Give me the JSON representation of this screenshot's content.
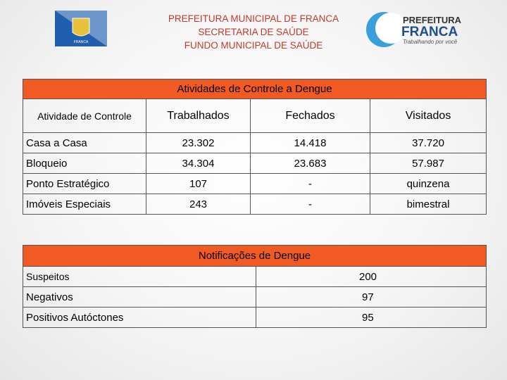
{
  "header": {
    "lines": [
      "PREFEITURA MUNICIPAL DE FRANCA",
      "SECRETARIA DE SAÚDE",
      "FUNDO MUNICIPAL DE SAÚDE"
    ],
    "crest_label": "FRANCA",
    "logo": {
      "name": "PREFEITURA",
      "city": "FRANCA",
      "slogan": "Trabalhando por você"
    }
  },
  "table1": {
    "title": "Atividades de Controle a Dengue",
    "columns": [
      "Atividade de Controle",
      "Trabalhados",
      "Fechados",
      "Visitados"
    ],
    "rows": [
      [
        "Casa a Casa",
        "23.302",
        "14.418",
        "37.720"
      ],
      [
        "Bloqueio",
        "34.304",
        "23.683",
        "57.987"
      ],
      [
        "Ponto Estratégico",
        "107",
        "-",
        "quinzena"
      ],
      [
        "Imóveis Especiais",
        "243",
        "-",
        "bimestral"
      ]
    ]
  },
  "table2": {
    "title": "Notificações de  Dengue",
    "rows": [
      [
        "Suspeitos",
        "200"
      ],
      [
        "Negativos",
        "97"
      ],
      [
        "Positivos Autóctones",
        "95"
      ]
    ]
  }
}
